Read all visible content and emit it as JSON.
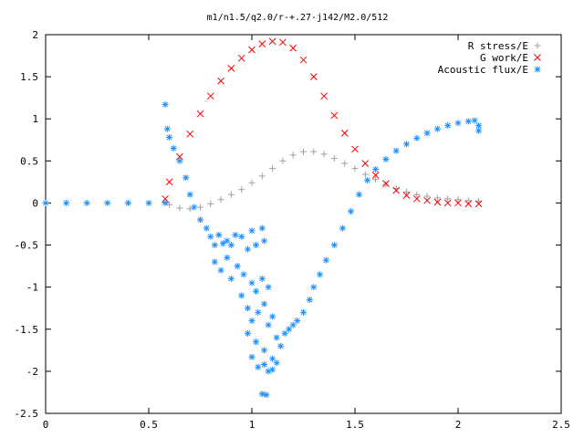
{
  "chart_data": {
    "type": "scatter",
    "title": "m1/n1.5/q2.0/r-+.27-j142/M2.0/512",
    "xlabel": "",
    "ylabel": "",
    "xlim": [
      0,
      2.5
    ],
    "ylim": [
      -2.5,
      2
    ],
    "x_ticks": [
      "0",
      "0.5",
      "1",
      "1.5",
      "2",
      "2.5"
    ],
    "y_ticks": [
      "2",
      "1.5",
      "1",
      "0.5",
      "0",
      "-0.5",
      "-1",
      "-1.5",
      "-2",
      "-2.5"
    ],
    "grid": false,
    "legend_position": "top-right",
    "series": [
      {
        "name": "R stress/E",
        "marker": "plus",
        "color": "#a0a0a0",
        "points": [
          [
            0.58,
            0.01
          ],
          [
            0.6,
            -0.02
          ],
          [
            0.65,
            -0.06
          ],
          [
            0.7,
            -0.07
          ],
          [
            0.75,
            -0.05
          ],
          [
            0.8,
            -0.01
          ],
          [
            0.85,
            0.04
          ],
          [
            0.9,
            0.1
          ],
          [
            0.95,
            0.16
          ],
          [
            1.0,
            0.24
          ],
          [
            1.05,
            0.32
          ],
          [
            1.1,
            0.41
          ],
          [
            1.15,
            0.5
          ],
          [
            1.2,
            0.57
          ],
          [
            1.25,
            0.61
          ],
          [
            1.3,
            0.61
          ],
          [
            1.35,
            0.58
          ],
          [
            1.4,
            0.53
          ],
          [
            1.45,
            0.47
          ],
          [
            1.5,
            0.41
          ],
          [
            1.55,
            0.34
          ],
          [
            1.6,
            0.28
          ],
          [
            1.65,
            0.22
          ],
          [
            1.7,
            0.17
          ],
          [
            1.75,
            0.13
          ],
          [
            1.8,
            0.1
          ],
          [
            1.85,
            0.08
          ],
          [
            1.9,
            0.06
          ],
          [
            1.95,
            0.05
          ],
          [
            2.0,
            0.04
          ],
          [
            2.05,
            0.03
          ],
          [
            2.1,
            0.02
          ]
        ]
      },
      {
        "name": "G work/E",
        "marker": "cross",
        "color": "#ff0000",
        "points": [
          [
            0.58,
            0.05
          ],
          [
            0.6,
            0.25
          ],
          [
            0.65,
            0.55
          ],
          [
            0.7,
            0.82
          ],
          [
            0.75,
            1.06
          ],
          [
            0.8,
            1.27
          ],
          [
            0.85,
            1.45
          ],
          [
            0.9,
            1.6
          ],
          [
            0.95,
            1.72
          ],
          [
            1.0,
            1.82
          ],
          [
            1.05,
            1.89
          ],
          [
            1.1,
            1.92
          ],
          [
            1.15,
            1.91
          ],
          [
            1.2,
            1.84
          ],
          [
            1.25,
            1.7
          ],
          [
            1.3,
            1.5
          ],
          [
            1.35,
            1.27
          ],
          [
            1.4,
            1.04
          ],
          [
            1.45,
            0.83
          ],
          [
            1.5,
            0.64
          ],
          [
            1.55,
            0.47
          ],
          [
            1.6,
            0.33
          ],
          [
            1.65,
            0.23
          ],
          [
            1.7,
            0.15
          ],
          [
            1.75,
            0.09
          ],
          [
            1.8,
            0.05
          ],
          [
            1.85,
            0.03
          ],
          [
            1.9,
            0.01
          ],
          [
            1.95,
            0.0
          ],
          [
            2.0,
            0.0
          ],
          [
            2.05,
            -0.01
          ],
          [
            2.1,
            -0.01
          ]
        ]
      },
      {
        "name": "Acoustic flux/E",
        "marker": "star",
        "color": "#1e90ff",
        "points": [
          [
            0.0,
            0.0
          ],
          [
            0.1,
            0.0
          ],
          [
            0.2,
            0.0
          ],
          [
            0.3,
            0.0
          ],
          [
            0.4,
            0.0
          ],
          [
            0.5,
            0.0
          ],
          [
            0.58,
            0.0
          ],
          [
            0.58,
            1.17
          ],
          [
            0.59,
            0.88
          ],
          [
            0.6,
            0.78
          ],
          [
            0.62,
            0.65
          ],
          [
            0.65,
            0.5
          ],
          [
            0.68,
            0.3
          ],
          [
            0.7,
            0.1
          ],
          [
            0.72,
            -0.05
          ],
          [
            0.75,
            -0.2
          ],
          [
            0.78,
            -0.3
          ],
          [
            0.8,
            -0.4
          ],
          [
            0.82,
            -0.5
          ],
          [
            0.84,
            -0.38
          ],
          [
            0.86,
            -0.48
          ],
          [
            0.88,
            -0.45
          ],
          [
            0.9,
            -0.5
          ],
          [
            0.92,
            -0.38
          ],
          [
            0.95,
            -0.4
          ],
          [
            0.98,
            -0.55
          ],
          [
            1.0,
            -0.33
          ],
          [
            1.02,
            -0.5
          ],
          [
            1.05,
            -0.3
          ],
          [
            1.06,
            -0.45
          ],
          [
            0.82,
            -0.7
          ],
          [
            0.85,
            -0.8
          ],
          [
            0.88,
            -0.65
          ],
          [
            0.9,
            -0.9
          ],
          [
            0.93,
            -0.75
          ],
          [
            0.96,
            -0.85
          ],
          [
            1.0,
            -0.95
          ],
          [
            1.02,
            -1.05
          ],
          [
            1.05,
            -0.9
          ],
          [
            1.08,
            -1.0
          ],
          [
            0.95,
            -1.1
          ],
          [
            0.98,
            -1.25
          ],
          [
            1.0,
            -1.4
          ],
          [
            1.03,
            -1.3
          ],
          [
            1.06,
            -1.2
          ],
          [
            1.08,
            -1.45
          ],
          [
            1.1,
            -1.35
          ],
          [
            1.12,
            -1.6
          ],
          [
            1.14,
            -1.7
          ],
          [
            1.16,
            -1.55
          ],
          [
            1.18,
            -1.5
          ],
          [
            1.2,
            -1.45
          ],
          [
            1.22,
            -1.4
          ],
          [
            1.25,
            -1.3
          ],
          [
            0.98,
            -1.55
          ],
          [
            1.02,
            -1.65
          ],
          [
            1.06,
            -1.75
          ],
          [
            1.1,
            -1.85
          ],
          [
            1.0,
            -1.83
          ],
          [
            1.03,
            -1.95
          ],
          [
            1.06,
            -1.92
          ],
          [
            1.08,
            -2.0
          ],
          [
            1.1,
            -1.98
          ],
          [
            1.12,
            -1.9
          ],
          [
            1.05,
            -2.27
          ],
          [
            1.07,
            -2.28
          ],
          [
            1.28,
            -1.15
          ],
          [
            1.3,
            -1.0
          ],
          [
            1.33,
            -0.85
          ],
          [
            1.36,
            -0.68
          ],
          [
            1.4,
            -0.5
          ],
          [
            1.44,
            -0.3
          ],
          [
            1.48,
            -0.1
          ],
          [
            1.52,
            0.1
          ],
          [
            1.56,
            0.27
          ],
          [
            1.6,
            0.4
          ],
          [
            1.65,
            0.52
          ],
          [
            1.7,
            0.62
          ],
          [
            1.75,
            0.7
          ],
          [
            1.8,
            0.77
          ],
          [
            1.85,
            0.83
          ],
          [
            1.9,
            0.88
          ],
          [
            1.95,
            0.92
          ],
          [
            2.0,
            0.95
          ],
          [
            2.05,
            0.97
          ],
          [
            2.08,
            0.98
          ],
          [
            2.1,
            0.92
          ],
          [
            2.1,
            0.86
          ]
        ]
      }
    ]
  }
}
